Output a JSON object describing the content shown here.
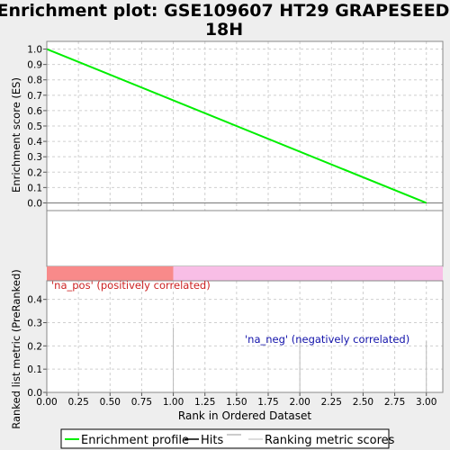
{
  "title_line1": "Enrichment plot: GSE109607 HT29 GRAPESEED",
  "title_line2": "18H",
  "colors": {
    "enrichment_line": "#00ee00",
    "pos_bar": "#f88a8a",
    "neg_bar": "#f8bee6",
    "pos_text": "#cc2222",
    "neg_text": "#1111aa",
    "metric": "#bbbbbb"
  },
  "pos_label": "'na_pos' (positively correlated)",
  "neg_label": "'na_neg' (negatively correlated)",
  "legend": {
    "enrichment": "Enrichment profile",
    "hits": "Hits",
    "ranking": "Ranking metric scores"
  },
  "chart_data": [
    {
      "type": "line",
      "name": "enrichment-plot",
      "ylabel": "Enrichment score (ES)",
      "ylim": [
        -0.05,
        1.05
      ],
      "yticks": [
        "0.0",
        "0.1",
        "0.2",
        "0.3",
        "0.4",
        "0.5",
        "0.6",
        "0.7",
        "0.8",
        "0.9",
        "1.0"
      ],
      "grid": true,
      "series": [
        {
          "x": [
            0,
            3
          ],
          "y": [
            1.0,
            0.0
          ]
        }
      ]
    },
    {
      "type": "bar",
      "name": "ranked-list-metric",
      "xlabel": "Rank in Ordered Dataset",
      "ylabel": "Ranked list metric (PreRanked)",
      "xlim": [
        0,
        3.13
      ],
      "ylim": [
        0,
        0.48
      ],
      "xticks": [
        "0.00",
        "0.25",
        "0.50",
        "0.75",
        "1.00",
        "1.25",
        "1.50",
        "1.75",
        "2.00",
        "2.25",
        "2.50",
        "2.75",
        "3.00"
      ],
      "yticks": [
        "0.0",
        "0.1",
        "0.2",
        "0.3",
        "0.4"
      ],
      "grid": true,
      "x": [
        1,
        2,
        3
      ],
      "values": [
        0.28,
        0.23,
        0.22
      ],
      "split_at": 1
    }
  ]
}
